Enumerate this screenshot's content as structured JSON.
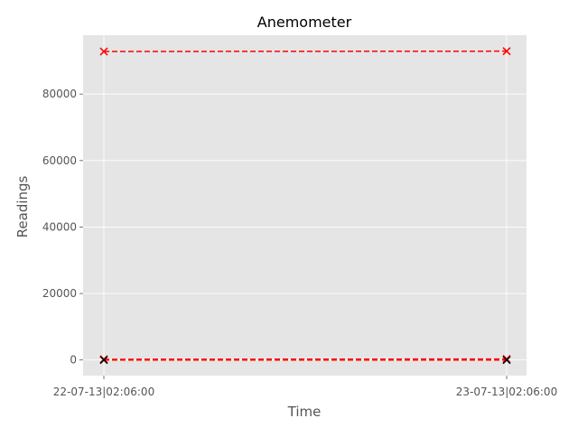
{
  "chart_data": {
    "type": "line",
    "title": "Anemometer",
    "xlabel": "Time",
    "ylabel": "Readings",
    "x": [
      "22-07-13|02:06:00",
      "23-07-13|02:06:00"
    ],
    "series": [
      {
        "values": [
          92800,
          92900
        ]
      },
      {
        "values": [
          200,
          300
        ]
      },
      {
        "values": [
          0,
          0
        ]
      }
    ],
    "ylim": [
      -4700,
      97700
    ],
    "yticks": [
      0,
      20000,
      40000,
      60000,
      80000
    ],
    "ytick_labels": [
      "0",
      "20000",
      "40000",
      "60000",
      "80000"
    ],
    "grid": true,
    "style": "ggplot",
    "colors": {
      "line": "#ff0000",
      "marker": "#ff0000",
      "marker_last": "#000000",
      "background": "#e5e5e5",
      "grid": "#ffffff"
    },
    "line_style": "dashed",
    "marker": "x"
  }
}
